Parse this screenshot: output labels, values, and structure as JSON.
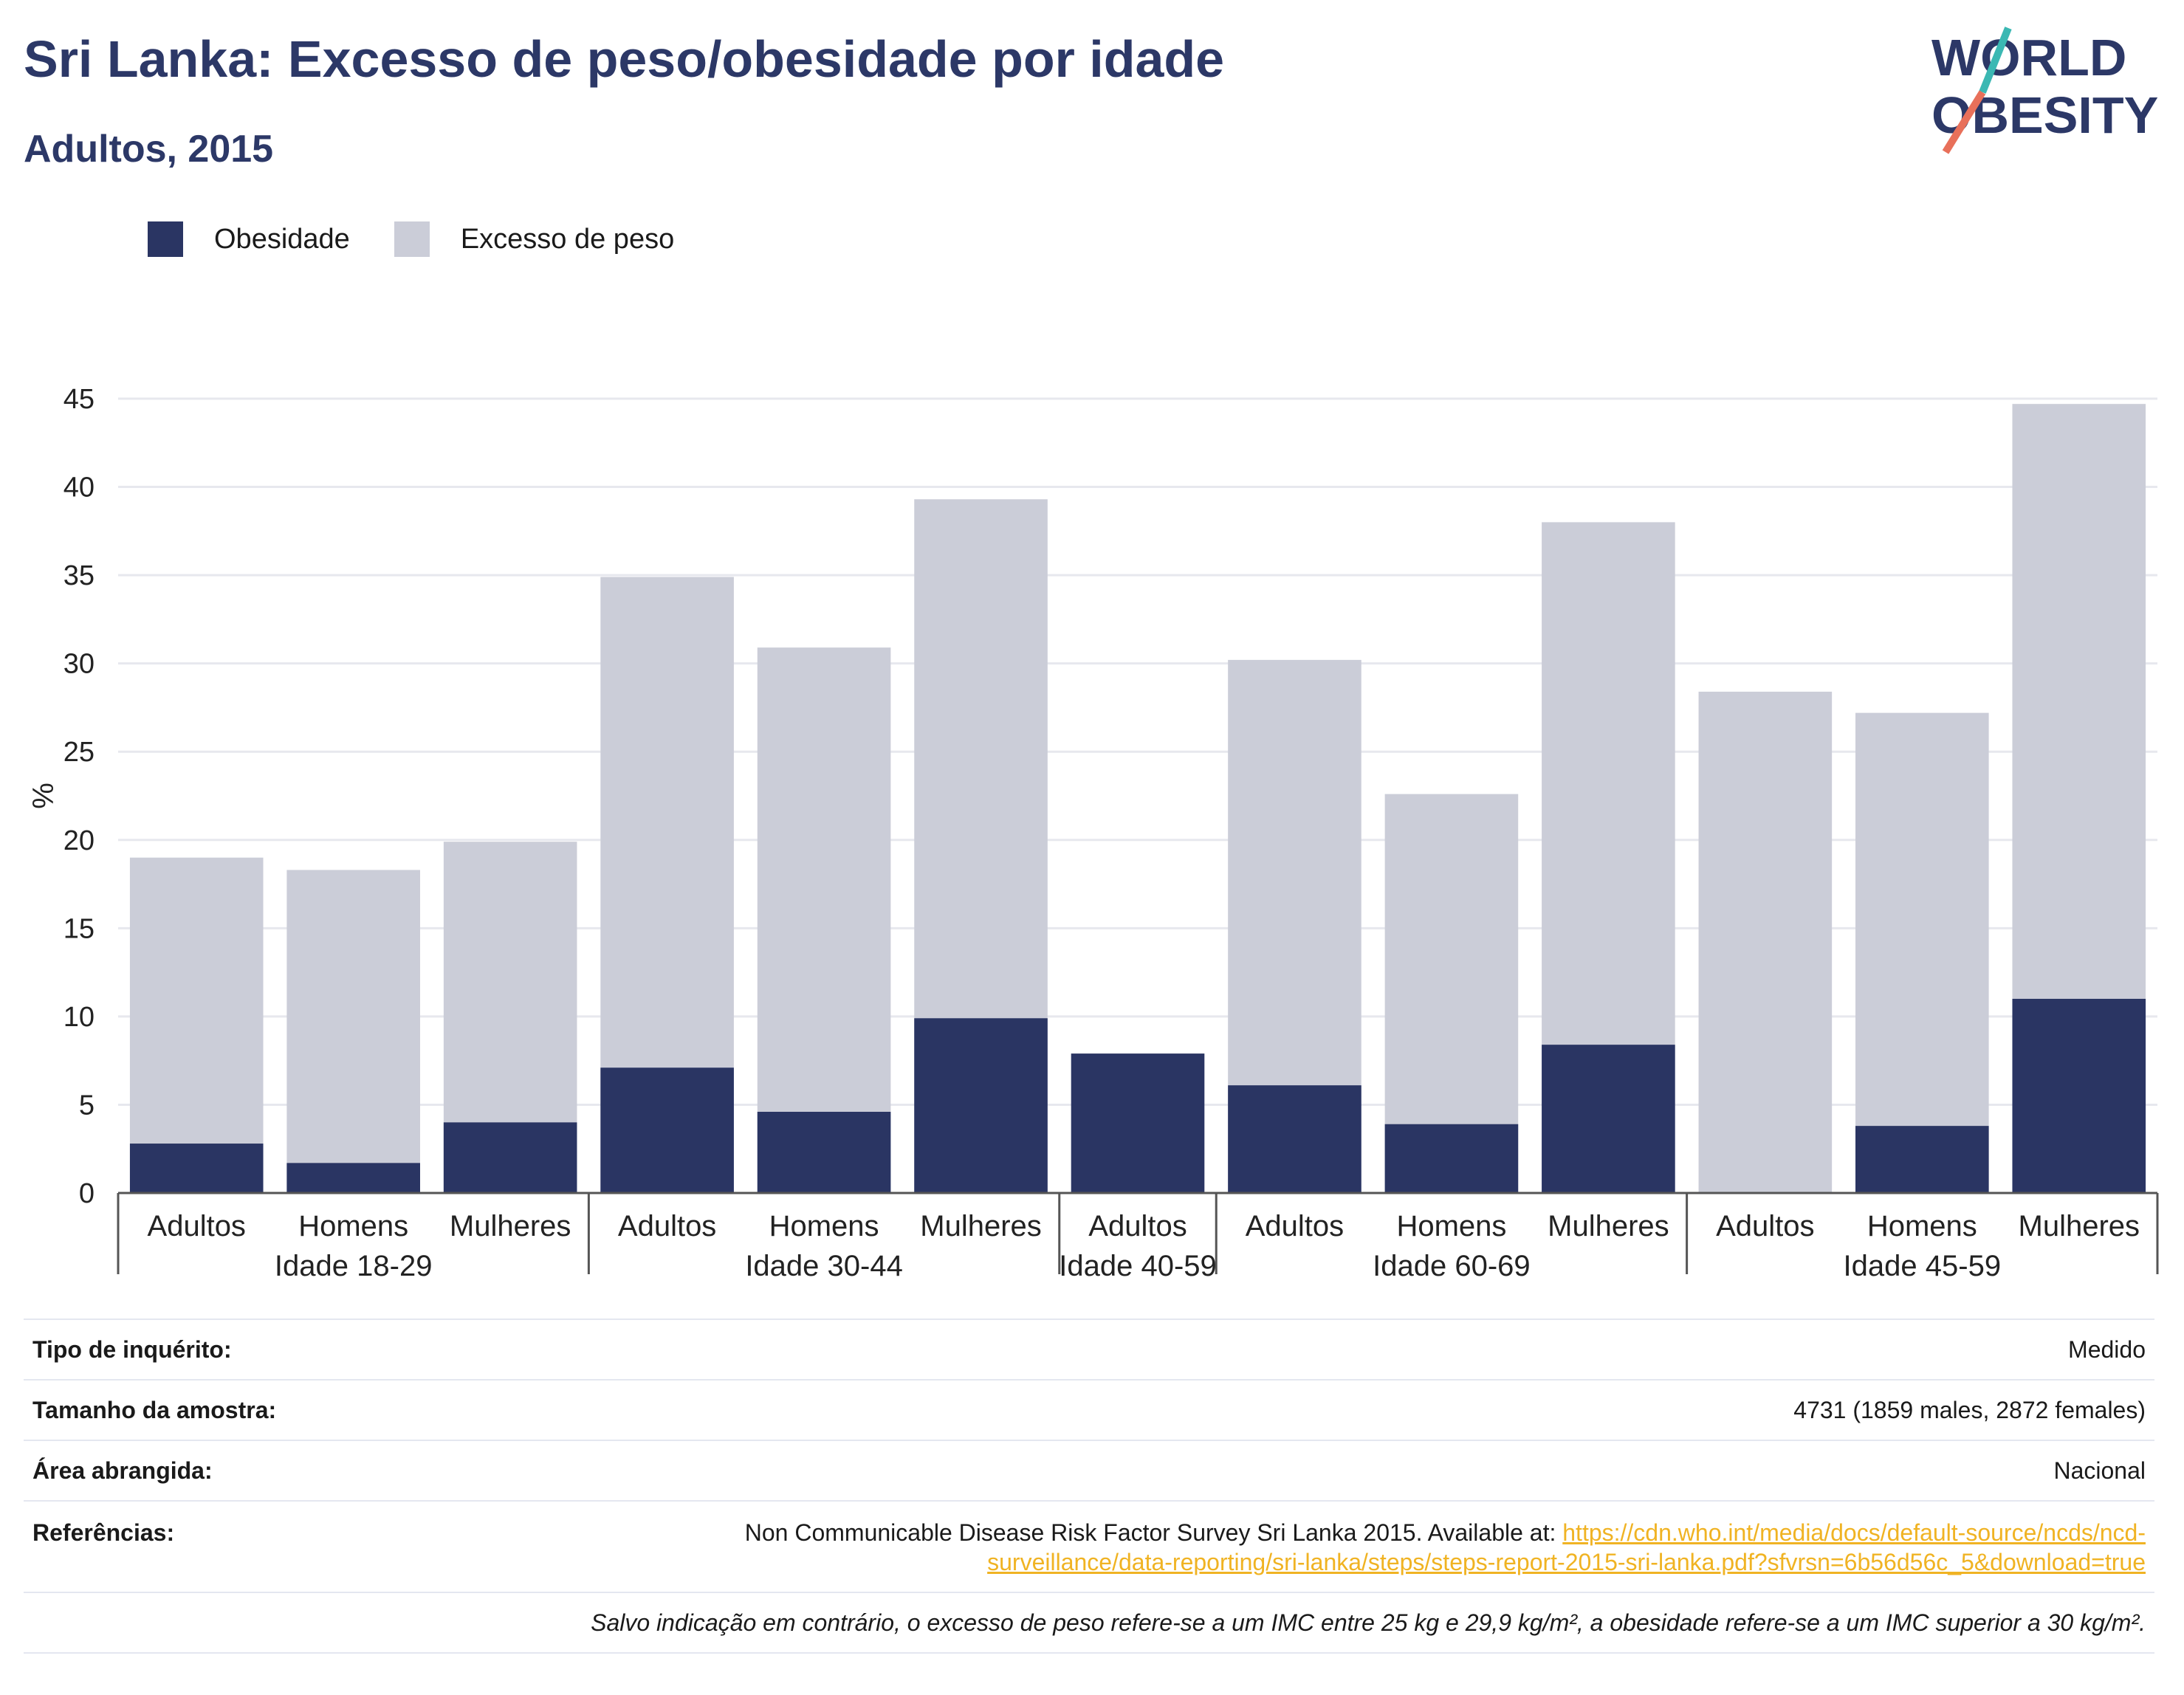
{
  "header": {
    "title": "Sri Lanka: Excesso de peso/obesidade por idade",
    "subtitle": "Adultos, 2015"
  },
  "logo": {
    "line1": "WORLD",
    "line2": "OBESITY",
    "accent_teal": "#3bb8b3",
    "accent_coral": "#e8705a",
    "text_color": "#2c3867"
  },
  "legend": [
    {
      "label": "Obesidade",
      "color": "#2a3563"
    },
    {
      "label": "Excesso de peso",
      "color": "#cbcdd8"
    }
  ],
  "chart_data": {
    "type": "bar",
    "stacked": false,
    "ylabel": "%",
    "ylim": [
      0,
      45
    ],
    "yticks": [
      0,
      5,
      10,
      15,
      20,
      25,
      30,
      35,
      40,
      45
    ],
    "grid": true,
    "legend_position": "top-left",
    "groups": [
      {
        "label": "Idade 18-29",
        "categories": [
          "Adultos",
          "Homens",
          "Mulheres"
        ]
      },
      {
        "label": "Idade 30-44",
        "categories": [
          "Adultos",
          "Homens",
          "Mulheres"
        ]
      },
      {
        "label": "Idade 40-59",
        "categories": [
          "Adultos"
        ]
      },
      {
        "label": "Idade 60-69",
        "categories": [
          "Adultos",
          "Homens",
          "Mulheres"
        ]
      },
      {
        "label": "Idade 45-59",
        "categories": [
          "Adultos",
          "Homens",
          "Mulheres"
        ]
      }
    ],
    "series": [
      {
        "name": "Excesso de peso",
        "color": "#cbcdd8",
        "values": [
          19.0,
          18.3,
          19.9,
          34.9,
          30.9,
          39.3,
          null,
          30.2,
          22.6,
          38.0,
          28.4,
          27.2,
          44.7
        ]
      },
      {
        "name": "Obesidade",
        "color": "#2a3563",
        "values": [
          2.8,
          1.7,
          4.0,
          7.1,
          4.6,
          9.9,
          7.9,
          6.1,
          3.9,
          8.4,
          null,
          3.8,
          11.0
        ]
      }
    ]
  },
  "info": {
    "survey_type": {
      "label": "Tipo de inquérito:",
      "value": "Medido"
    },
    "sample_size": {
      "label": "Tamanho da amostra:",
      "value": "4731 (1859 males, 2872 females)"
    },
    "area": {
      "label": "Área abrangida:",
      "value": "Nacional"
    },
    "references": {
      "label": "Referências:",
      "text": "Non Communicable Disease Risk Factor Survey Sri Lanka 2015. Available at: ",
      "link_line1": "https://cdn.who.int/media/docs/default-source/ncds/ncd-",
      "link_line2": "surveillance/data-reporting/sri-lanka/steps/steps-report-2015-sri-lanka.pdf?sfvrsn=6b56d56c_5&download=true"
    },
    "note": "Salvo indicação em contrário, o excesso de peso refere-se a um IMC entre 25 kg e 29,9 kg/m², a obesidade refere-se a um IMC superior a 30 kg/m²."
  }
}
